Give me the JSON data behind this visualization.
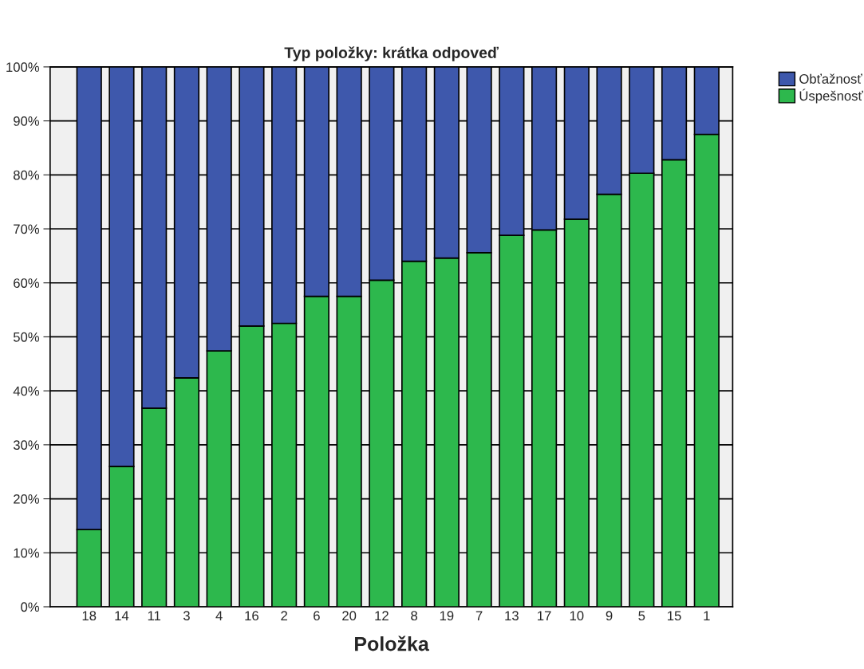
{
  "chart_data": {
    "type": "bar",
    "title": "Typ položky: krátka odpoveď",
    "xlabel": "Položka",
    "categories": [
      "18",
      "14",
      "11",
      "3",
      "4",
      "16",
      "2",
      "6",
      "20",
      "12",
      "8",
      "19",
      "7",
      "13",
      "17",
      "10",
      "9",
      "5",
      "15",
      "1"
    ],
    "stacked": true,
    "series": [
      {
        "name": "Úspešnosť",
        "color": "#2db84d",
        "values": [
          14.3,
          26,
          36.8,
          42.4,
          47.4,
          52,
          52.5,
          57.5,
          57.5,
          60.5,
          64,
          64.6,
          65.6,
          68.8,
          69.8,
          71.8,
          76.4,
          80.3,
          82.8,
          87.5
        ]
      },
      {
        "name": "Obťažnosť",
        "color": "#3e58ac",
        "values": [
          85.7,
          74,
          63.2,
          57.6,
          52.6,
          48,
          47.5,
          42.5,
          42.5,
          39.5,
          36,
          35.4,
          34.4,
          31.2,
          30.2,
          28.2,
          23.6,
          19.7,
          17.2,
          12.5
        ]
      }
    ],
    "ylim": [
      0,
      100
    ],
    "yticks": [
      {
        "value": 0,
        "label": "0%"
      },
      {
        "value": 10,
        "label": "10%"
      },
      {
        "value": 20,
        "label": "20%"
      },
      {
        "value": 30,
        "label": "30%"
      },
      {
        "value": 40,
        "label": "40%"
      },
      {
        "value": 50,
        "label": "50%"
      },
      {
        "value": 60,
        "label": "60%"
      },
      {
        "value": 70,
        "label": "70%"
      },
      {
        "value": 80,
        "label": "80%"
      },
      {
        "value": 90,
        "label": "90%"
      },
      {
        "value": 100,
        "label": "100%"
      }
    ],
    "grid": "y",
    "legend": "right"
  }
}
